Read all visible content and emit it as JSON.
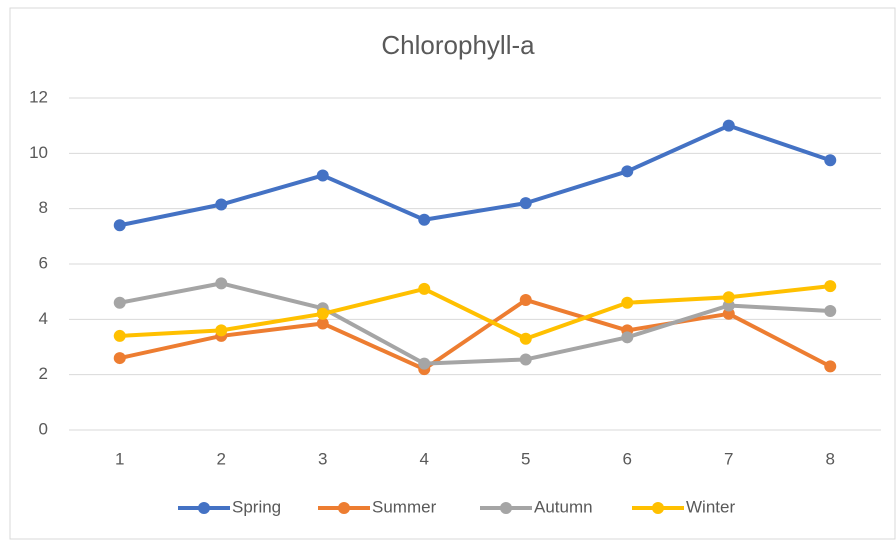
{
  "chart_data": {
    "type": "line",
    "title": "Chlorophyll-a",
    "categories": [
      "1",
      "2",
      "3",
      "4",
      "5",
      "6",
      "7",
      "8"
    ],
    "series": [
      {
        "name": "Spring",
        "color": "#4472c4",
        "values": [
          7.4,
          8.15,
          9.2,
          7.6,
          8.2,
          9.35,
          11.0,
          9.75
        ]
      },
      {
        "name": "Summer",
        "color": "#ed7d31",
        "values": [
          2.6,
          3.4,
          3.85,
          2.2,
          4.7,
          3.6,
          4.2,
          2.3
        ]
      },
      {
        "name": "Autumn",
        "color": "#a5a5a5",
        "values": [
          4.6,
          5.3,
          4.4,
          2.4,
          2.55,
          3.35,
          4.5,
          4.3
        ]
      },
      {
        "name": "Winter",
        "color": "#ffc000",
        "values": [
          3.4,
          3.6,
          4.2,
          5.1,
          3.3,
          4.6,
          4.8,
          5.2
        ]
      }
    ],
    "ylim": [
      0,
      12
    ],
    "yticks": [
      0,
      2,
      4,
      6,
      8,
      10,
      12
    ],
    "grid": true,
    "legend": "bottom"
  }
}
